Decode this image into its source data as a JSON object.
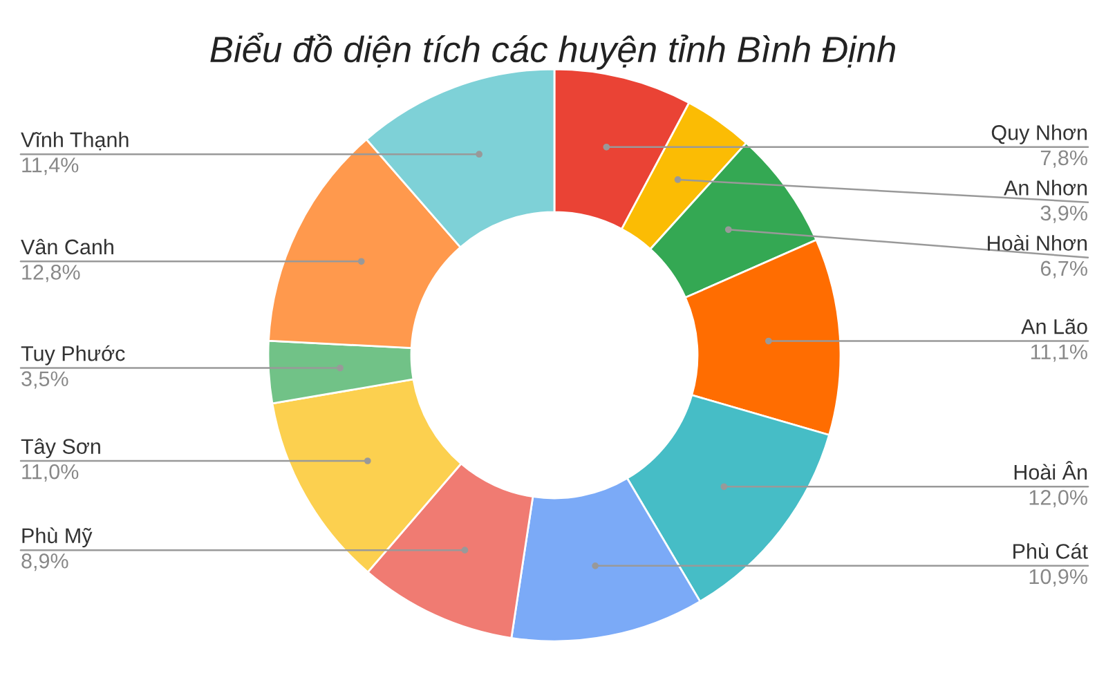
{
  "chart_data": {
    "type": "donut",
    "title": "Biểu đồ diện tích các huyện tỉnh Bình Định",
    "categories": [
      "Quy Nhơn",
      "An Nhơn",
      "Hoài Nhơn",
      "An Lão",
      "Hoài Ân",
      "Phù Cát",
      "Phù Mỹ",
      "Tây Sơn",
      "Tuy Phước",
      "Vân Canh",
      "Vĩnh Thạnh"
    ],
    "values": [
      7.8,
      3.9,
      6.7,
      11.1,
      12.0,
      10.9,
      8.9,
      11.0,
      3.5,
      12.8,
      11.4
    ],
    "value_labels": [
      "7,8%",
      "3,9%",
      "6,7%",
      "11,1%",
      "12,0%",
      "10,9%",
      "8,9%",
      "11,0%",
      "3,5%",
      "12,8%",
      "11,4%"
    ],
    "colors": [
      "#ea4335",
      "#fbbc04",
      "#34a853",
      "#ff6d01",
      "#46bdc6",
      "#7baaf7",
      "#f07b72",
      "#fcd04f",
      "#71c287",
      "#ff994d",
      "#7ed1d7"
    ],
    "legend": false
  }
}
